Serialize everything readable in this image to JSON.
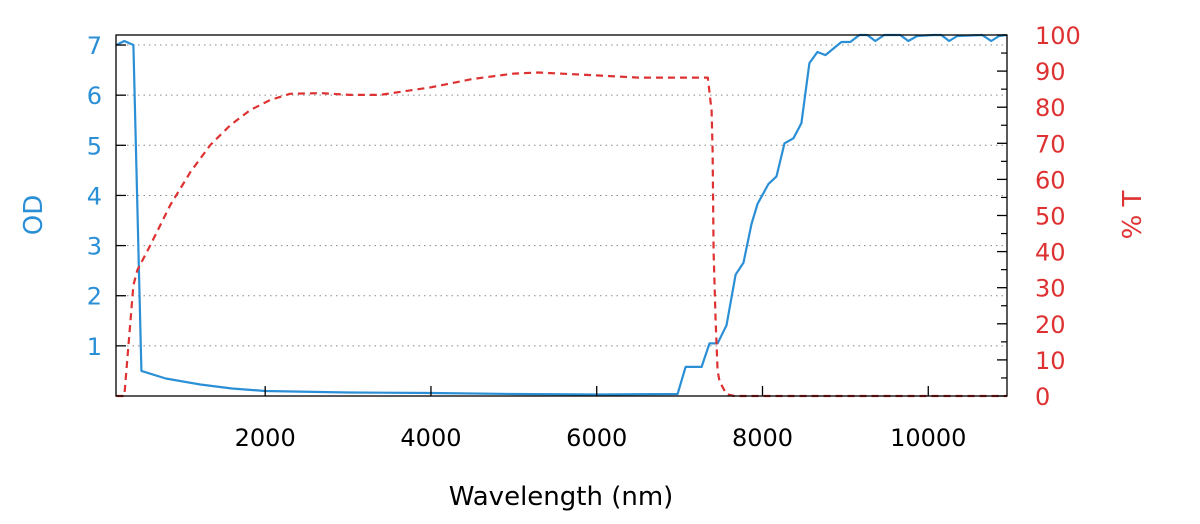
{
  "chart_data": {
    "type": "line",
    "title": "",
    "xlabel": "Wavelength (nm)",
    "ylabel_left": "OD",
    "ylabel_right": "% T",
    "xlim": [
      200,
      10950
    ],
    "ylim_left": [
      0,
      7.2
    ],
    "ylim_right": [
      0,
      100
    ],
    "x_ticks": [
      2000,
      4000,
      6000,
      8000,
      10000
    ],
    "y_left_ticks": [
      1,
      2,
      3,
      4,
      5,
      6,
      7
    ],
    "y_right_ticks": [
      0,
      10,
      20,
      30,
      40,
      50,
      60,
      70,
      80,
      90,
      100
    ],
    "grid": "horizontal dotted at OD ticks",
    "colors": {
      "od": "#2b8fd6",
      "t": "#de3131"
    },
    "series": [
      {
        "name": "OD",
        "axis": "left",
        "style": "solid",
        "x": [
          205,
          300,
          410,
          506,
          800,
          1217,
          1600,
          2000,
          3000,
          4000,
          5000,
          6000,
          6976,
          7072,
          7265,
          7361,
          7458,
          7566,
          7675,
          7771,
          7867,
          7940,
          8072,
          8169,
          8265,
          8373,
          8470,
          8566,
          8663,
          8759,
          8952,
          9060,
          9169,
          9265,
          9361,
          9470,
          9663,
          9759,
          9867,
          10060,
          10157,
          10253,
          10349,
          10651,
          10759,
          10855,
          10940
        ],
        "y": [
          7.0,
          7.08,
          7.0,
          0.5,
          0.35,
          0.23,
          0.15,
          0.1,
          0.07,
          0.06,
          0.04,
          0.03,
          0.04,
          0.58,
          0.58,
          1.05,
          1.05,
          1.41,
          2.42,
          2.66,
          3.43,
          3.83,
          4.23,
          4.38,
          5.04,
          5.14,
          5.44,
          6.64,
          6.86,
          6.8,
          7.06,
          7.06,
          7.2,
          7.2,
          7.08,
          7.2,
          7.2,
          7.08,
          7.18,
          7.2,
          7.2,
          7.08,
          7.18,
          7.2,
          7.08,
          7.18,
          7.2
        ]
      },
      {
        "name": "% T",
        "axis": "right",
        "style": "dashed",
        "x": [
          205,
          300,
          410,
          458,
          615,
          855,
          1096,
          1337,
          1578,
          1819,
          2060,
          2301,
          2663,
          3024,
          3386,
          4000,
          4500,
          5000,
          5300,
          6000,
          6500,
          7000,
          7340,
          7386,
          7398,
          7410,
          7434,
          7458,
          7482,
          7566,
          7660,
          10950
        ],
        "y": [
          0,
          0,
          30.7,
          34.9,
          41.8,
          52.9,
          62,
          69.5,
          75,
          79.2,
          82,
          83.7,
          83.9,
          83.4,
          83.4,
          85.5,
          87.8,
          89.3,
          89.6,
          88.8,
          88.2,
          88.2,
          88.2,
          79,
          68,
          40,
          21,
          7,
          4,
          0.5,
          0,
          0
        ]
      }
    ]
  }
}
